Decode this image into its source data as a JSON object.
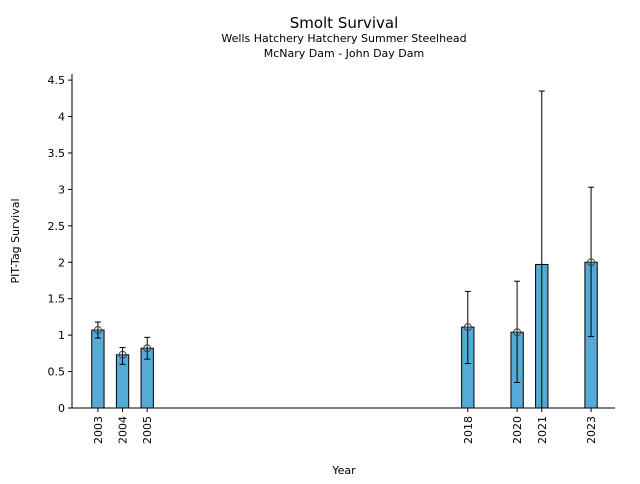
{
  "chart_data": {
    "type": "bar",
    "title": "Smolt Survival",
    "subtitle_lines": [
      "Wells Hatchery Hatchery Summer Steelhead",
      "McNary Dam - John Day Dam"
    ],
    "xlabel": "Year",
    "ylabel": "PIT-Tag Survival",
    "xlim": [
      2001.95,
      2023.97
    ],
    "ylim": [
      0,
      4.57
    ],
    "yticks": [
      0,
      0.5,
      1,
      1.5,
      2,
      2.5,
      3,
      3.5,
      4,
      4.5
    ],
    "ytick_labels": [
      "0",
      "0.5",
      "1",
      "1.5",
      "2",
      "2.5",
      "3",
      "3.5",
      "4",
      "4.5"
    ],
    "categories": [
      "2003",
      "2004",
      "2005",
      "2018",
      "2020",
      "2021",
      "2023"
    ],
    "x": [
      2003,
      2004,
      2005,
      2018,
      2020,
      2021,
      2023
    ],
    "values": [
      1.07,
      0.73,
      0.82,
      1.11,
      1.04,
      1.97,
      2.0
    ],
    "error_low": [
      0.96,
      0.6,
      0.67,
      0.61,
      0.35,
      0,
      0.98
    ],
    "error_high": [
      1.18,
      0.83,
      0.97,
      1.6,
      1.74,
      4.35,
      3.03
    ],
    "point_marker": [
      true,
      true,
      true,
      true,
      true,
      false,
      true
    ],
    "bar_color": "#56aad6",
    "grid": false
  }
}
